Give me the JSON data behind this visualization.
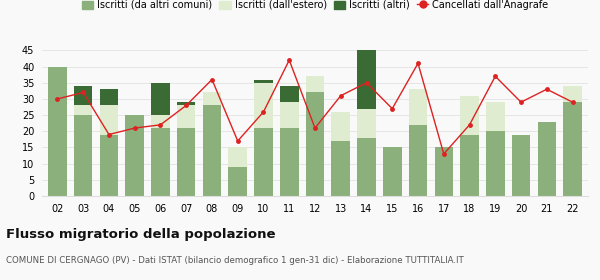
{
  "years": [
    "02",
    "03",
    "04",
    "05",
    "06",
    "07",
    "08",
    "09",
    "10",
    "11",
    "12",
    "13",
    "14",
    "15",
    "16",
    "17",
    "18",
    "19",
    "20",
    "21",
    "22"
  ],
  "iscritti_altri_comuni": [
    40,
    25,
    19,
    25,
    21,
    21,
    28,
    9,
    21,
    21,
    32,
    17,
    18,
    15,
    22,
    15,
    19,
    20,
    19,
    23,
    29
  ],
  "iscritti_estero": [
    0,
    3,
    9,
    0,
    4,
    7,
    4,
    6,
    14,
    8,
    5,
    9,
    9,
    0,
    11,
    0,
    12,
    9,
    0,
    0,
    5
  ],
  "iscritti_altri": [
    0,
    6,
    5,
    0,
    10,
    1,
    0,
    0,
    1,
    5,
    0,
    0,
    18,
    0,
    0,
    0,
    0,
    0,
    0,
    0,
    0
  ],
  "cancellati": [
    30,
    32,
    19,
    21,
    22,
    28,
    36,
    17,
    26,
    42,
    21,
    31,
    35,
    27,
    41,
    13,
    22,
    37,
    29,
    33,
    29
  ],
  "color_altri_comuni": "#8cb07c",
  "color_estero": "#e0ecd0",
  "color_altri": "#3a6b35",
  "color_cancellati": "#dd2222",
  "legend_labels": [
    "Iscritti (da altri comuni)",
    "Iscritti (dall'estero)",
    "Iscritti (altri)",
    "Cancellati dall'Anagrafe"
  ],
  "title": "Flusso migratorio della popolazione",
  "subtitle": "COMUNE DI CERGNAGO (PV) - Dati ISTAT (bilancio demografico 1 gen-31 dic) - Elaborazione TUTTITALIA.IT",
  "ylim": [
    0,
    45
  ],
  "yticks": [
    0,
    5,
    10,
    15,
    20,
    25,
    30,
    35,
    40,
    45
  ],
  "background_color": "#f9f9f9",
  "grid_color": "#dddddd"
}
